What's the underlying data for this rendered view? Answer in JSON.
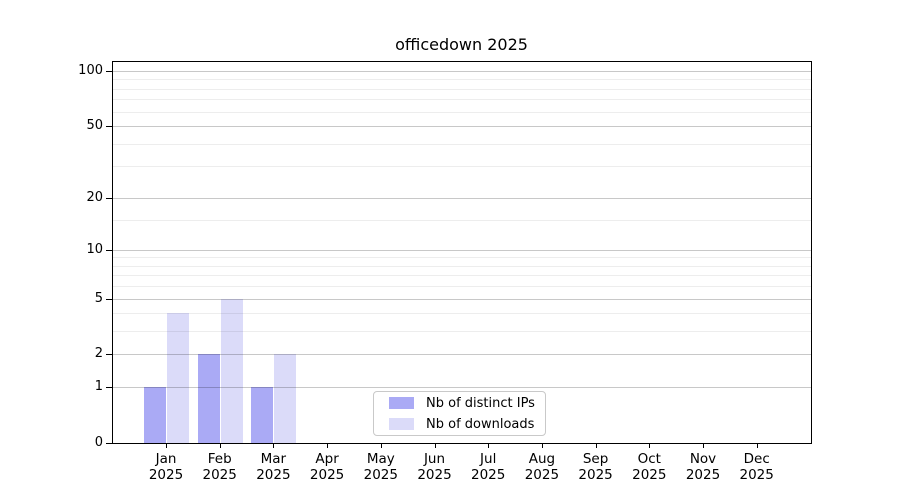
{
  "title": "officedown 2025",
  "legend": {
    "items": [
      {
        "label": "Nb of distinct IPs"
      },
      {
        "label": "Nb of downloads"
      }
    ]
  },
  "chart_data": {
    "type": "bar",
    "title": "officedown 2025",
    "categories": [
      "Jan",
      "Feb",
      "Mar",
      "Apr",
      "May",
      "Jun",
      "Jul",
      "Aug",
      "Sep",
      "Oct",
      "Nov",
      "Dec"
    ],
    "category_year": "2025",
    "series": [
      {
        "name": "Nb of distinct IPs",
        "color": "#aaaaf5",
        "values": [
          1,
          2,
          1,
          0,
          0,
          0,
          0,
          0,
          0,
          0,
          0,
          0
        ]
      },
      {
        "name": "Nb of downloads",
        "color": "#dbdbf9",
        "values": [
          4,
          5,
          2,
          0,
          0,
          0,
          0,
          0,
          0,
          0,
          0,
          0
        ]
      }
    ],
    "yscale": "log1p",
    "ylim": [
      0,
      113
    ],
    "yticks": [
      0,
      1,
      2,
      5,
      10,
      20,
      50,
      100
    ],
    "yminor_gridlines": [
      3,
      4,
      6,
      7,
      8,
      9,
      15,
      30,
      40,
      60,
      70,
      80,
      90
    ],
    "grid": true,
    "legend_position": "lower center",
    "colors": {
      "grid_major": "#c8c8c8",
      "grid_minor": "#ededed",
      "axis": "#000000"
    }
  }
}
